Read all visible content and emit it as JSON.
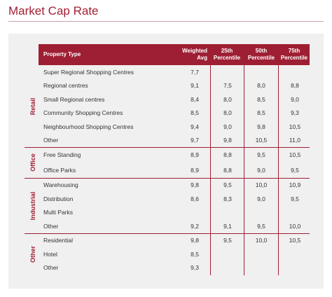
{
  "title": "Market Cap Rate",
  "table": {
    "header": [
      "Property Type",
      "Weighted Avg",
      "25th Percentile",
      "50th Percentile",
      "75th Percentile"
    ],
    "groups": [
      {
        "label": "Retail",
        "rows": [
          [
            "Super Regional Shopping Centres",
            "7,7",
            null,
            null,
            null
          ],
          [
            "Regional centres",
            "9,1",
            "7,5",
            "8,0",
            "8,8"
          ],
          [
            "Small Regional centres",
            "8,4",
            "8,0",
            "8,5",
            "9,0"
          ],
          [
            "Community Shopping Centres",
            "8,5",
            "8,0",
            "8,5",
            "9,3"
          ],
          [
            "Neighbourhood Shopping Centres",
            "9,4",
            "9,0",
            "9,8",
            "10,5"
          ],
          [
            "Other",
            "9,7",
            "9,8",
            "10,5",
            "11,0"
          ]
        ]
      },
      {
        "label": "Office",
        "rows": [
          [
            "Free Standing",
            "8,9",
            "8,8",
            "9,5",
            "10,5"
          ],
          [
            "Office Parks",
            "8,9",
            "8,8",
            "9,0",
            "9,5"
          ]
        ]
      },
      {
        "label": "Industrial",
        "rows": [
          [
            "Warehousing",
            "9,8",
            "9,5",
            "10,0",
            "10,9"
          ],
          [
            "Distribution",
            "8,6",
            "8,3",
            "9,0",
            "9,5"
          ],
          [
            "Multi Parks",
            null,
            null,
            null,
            null
          ],
          [
            "Other",
            "9,2",
            "9,1",
            "9,5",
            "10,0"
          ]
        ]
      },
      {
        "label": "Other",
        "rows": [
          [
            "Residential",
            "9,8",
            "9,5",
            "10,0",
            "10,5"
          ],
          [
            "Hotel",
            "8,5",
            null,
            null,
            null
          ],
          [
            "Other",
            "9,3",
            null,
            null,
            null
          ]
        ]
      }
    ]
  }
}
